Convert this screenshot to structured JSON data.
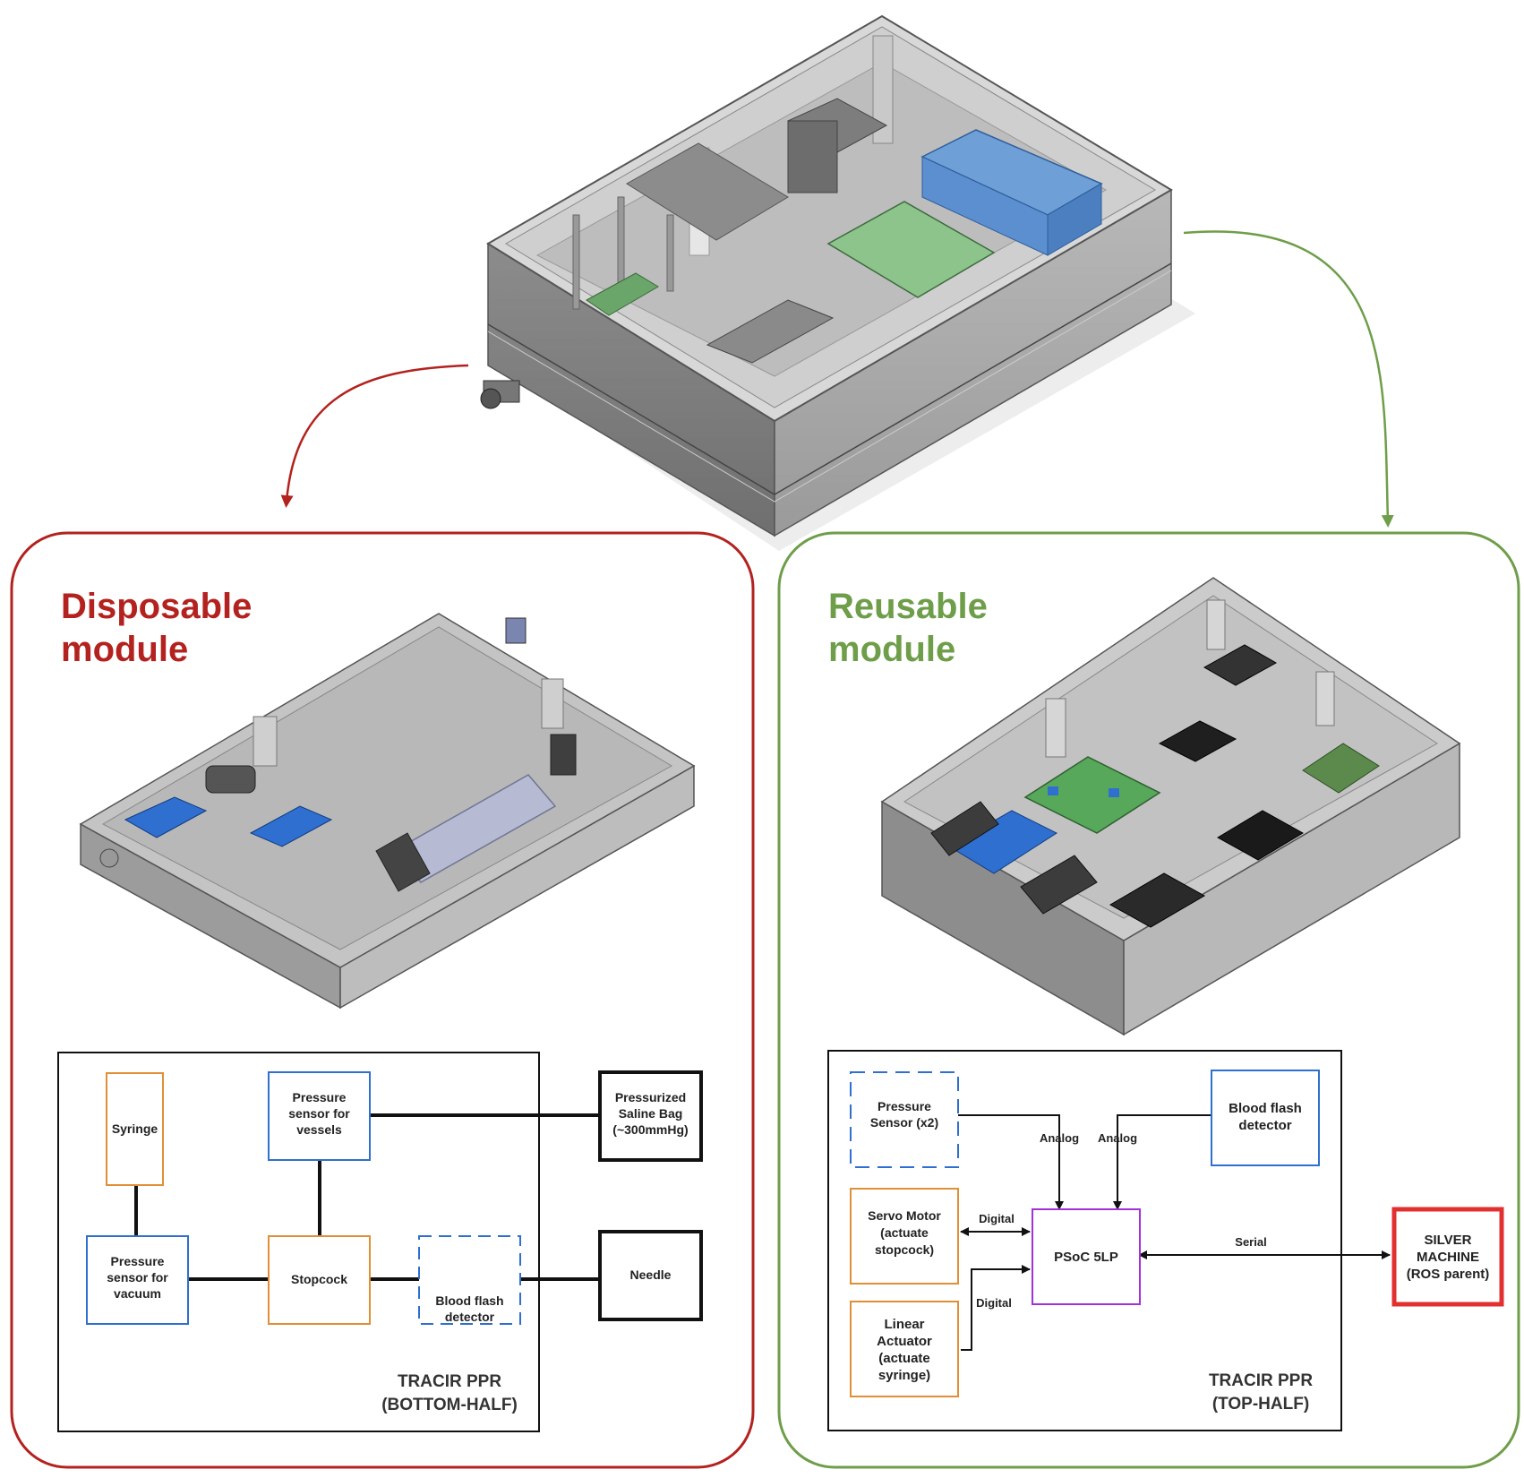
{
  "colors": {
    "disposable": "#b3221e",
    "reusable": "#6e9e49",
    "orange": "#e08f37",
    "blue": "#2f6fd0",
    "purple": "#9f32d8",
    "red_box": "#e23030",
    "black": "#111111",
    "enclosure": "#a9a9a9",
    "pcb": "#57a85a",
    "battery": "#5f90d0"
  },
  "disposable": {
    "title_line1": "Disposable",
    "title_line2": "module",
    "diagram": {
      "syringe": "Syringe",
      "pressure_vessels": [
        "Pressure",
        "sensor for",
        "vessels"
      ],
      "saline_bag": [
        "Pressurized",
        "Saline Bag",
        "(~300mmHg)"
      ],
      "pressure_vacuum": [
        "Pressure",
        "sensor for",
        "vacuum"
      ],
      "stopcock": "Stopcock",
      "blood_flash": [
        "Blood flash",
        "detector"
      ],
      "needle": "Needle",
      "footer": [
        "TRACIR PPR",
        "(BOTTOM-HALF)"
      ]
    }
  },
  "reusable": {
    "title_line1": "Reusable",
    "title_line2": "module",
    "diagram": {
      "pressure_sensor": [
        "Pressure",
        "Sensor (x2)"
      ],
      "blood_flash": [
        "Blood flash",
        "detector"
      ],
      "analog_left": "Analog",
      "analog_right": "Analog",
      "servo": [
        "Servo Motor",
        "(actuate",
        "stopcock)"
      ],
      "digital_top": "Digital",
      "psoc": "PSoC 5LP",
      "serial": "Serial",
      "silver": [
        "SILVER",
        "MACHINE",
        "(ROS parent)"
      ],
      "digital_bottom": "Digital",
      "linear": [
        "Linear",
        "Actuator",
        "(actuate",
        "syringe)"
      ],
      "footer": [
        "TRACIR PPR",
        "(TOP-HALF)"
      ]
    }
  }
}
